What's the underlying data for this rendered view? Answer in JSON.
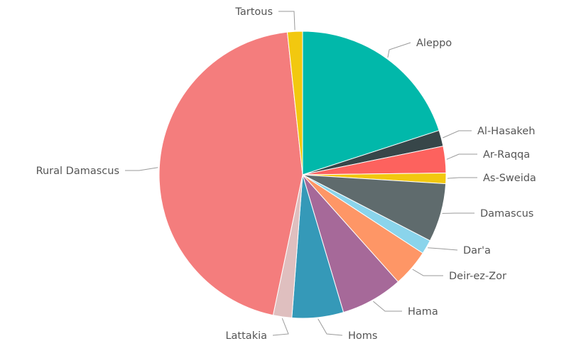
{
  "chart_data": {
    "type": "pie",
    "title": "",
    "legend": "none",
    "start": "top",
    "direction": "clockwise",
    "slices": [
      {
        "label": "Aleppo",
        "value": 20.0,
        "color": "#01B8AA"
      },
      {
        "label": "Al-Hasakeh",
        "value": 1.8,
        "color": "#374649"
      },
      {
        "label": "Ar-Raqqa",
        "value": 3.0,
        "color": "#FD625E"
      },
      {
        "label": "As-Sweida",
        "value": 1.2,
        "color": "#F2C80F"
      },
      {
        "label": "Damascus",
        "value": 6.6,
        "color": "#5F6B6D"
      },
      {
        "label": "Dar'a",
        "value": 1.6,
        "color": "#8AD4EB"
      },
      {
        "label": "Deir-ez-Zor",
        "value": 4.2,
        "color": "#FE9666"
      },
      {
        "label": "Hama",
        "value": 7.0,
        "color": "#A66999"
      },
      {
        "label": "Homs",
        "value": 5.8,
        "color": "#3599B8"
      },
      {
        "label": "Lattakia",
        "value": 2.1,
        "color": "#DFBFBF"
      },
      {
        "label": "Rural Damascus",
        "value": 45.0,
        "color": "#F47D7D"
      },
      {
        "label": "Tartous",
        "value": 1.7,
        "color": "#F2C80F"
      }
    ]
  }
}
